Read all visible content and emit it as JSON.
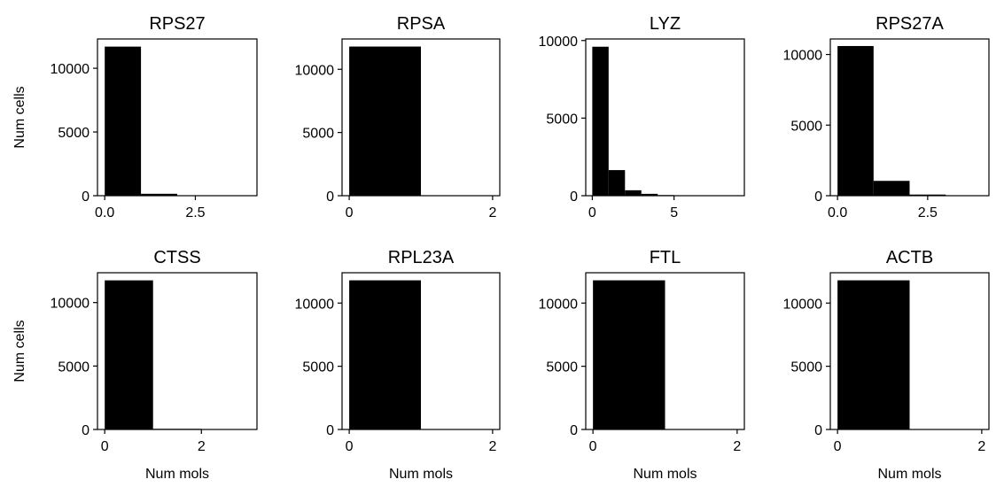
{
  "chart_data": [
    {
      "type": "bar",
      "title": "RPS27",
      "ylabel": "Num cells",
      "xlabel": "",
      "bins": [
        {
          "x0": 0,
          "x1": 1,
          "count": 11700
        },
        {
          "x0": 1,
          "x1": 2,
          "count": 150
        },
        {
          "x0": 2,
          "x1": 3,
          "count": 20
        },
        {
          "x0": 3,
          "x1": 4,
          "count": 5
        }
      ],
      "xlim": [
        -0.2,
        4.2
      ],
      "ylim": [
        0,
        12300
      ],
      "xticks": [
        0.0,
        2.5
      ],
      "xtick_labels": [
        "0.0",
        "2.5"
      ],
      "yticks": [
        0,
        5000,
        10000
      ],
      "ytick_labels": [
        "0",
        "5000",
        "10000"
      ]
    },
    {
      "type": "bar",
      "title": "RPSA",
      "ylabel": "",
      "xlabel": "",
      "bins": [
        {
          "x0": 0,
          "x1": 1,
          "count": 11800
        },
        {
          "x0": 1,
          "x1": 2,
          "count": 5
        }
      ],
      "xlim": [
        -0.1,
        2.1
      ],
      "ylim": [
        0,
        12400
      ],
      "xticks": [
        0,
        2
      ],
      "xtick_labels": [
        "0",
        "2"
      ],
      "yticks": [
        0,
        5000,
        10000
      ],
      "ytick_labels": [
        "0",
        "5000",
        "10000"
      ]
    },
    {
      "type": "bar",
      "title": "LYZ",
      "ylabel": "",
      "xlabel": "",
      "bins": [
        {
          "x0": 0,
          "x1": 1,
          "count": 9600
        },
        {
          "x0": 1,
          "x1": 2,
          "count": 1650
        },
        {
          "x0": 2,
          "x1": 3,
          "count": 350
        },
        {
          "x0": 3,
          "x1": 4,
          "count": 120
        },
        {
          "x0": 4,
          "x1": 5,
          "count": 40
        },
        {
          "x0": 5,
          "x1": 6,
          "count": 10
        },
        {
          "x0": 6,
          "x1": 7,
          "count": 5
        },
        {
          "x0": 7,
          "x1": 8,
          "count": 2
        }
      ],
      "xlim": [
        -0.4,
        9.3
      ],
      "ylim": [
        0,
        10100
      ],
      "xticks": [
        0,
        5
      ],
      "xtick_labels": [
        "0",
        "5"
      ],
      "yticks": [
        0,
        5000,
        10000
      ],
      "ytick_labels": [
        "0",
        "5000",
        "10000"
      ]
    },
    {
      "type": "bar",
      "title": "RPS27A",
      "ylabel": "",
      "xlabel": "",
      "bins": [
        {
          "x0": 0,
          "x1": 1,
          "count": 10600
        },
        {
          "x0": 1,
          "x1": 2,
          "count": 1050
        },
        {
          "x0": 2,
          "x1": 3,
          "count": 80
        },
        {
          "x0": 3,
          "x1": 4,
          "count": 5
        }
      ],
      "xlim": [
        -0.2,
        4.2
      ],
      "ylim": [
        0,
        11100
      ],
      "xticks": [
        0.0,
        2.5
      ],
      "xtick_labels": [
        "0.0",
        "2.5"
      ],
      "yticks": [
        0,
        5000,
        10000
      ],
      "ytick_labels": [
        "0",
        "5000",
        "10000"
      ]
    },
    {
      "type": "bar",
      "title": "CTSS",
      "ylabel": "Num cells",
      "xlabel": "Num mols",
      "bins": [
        {
          "x0": 0,
          "x1": 1,
          "count": 11750
        },
        {
          "x0": 1,
          "x1": 2,
          "count": 50
        },
        {
          "x0": 2,
          "x1": 3,
          "count": 5
        }
      ],
      "xlim": [
        -0.15,
        3.15
      ],
      "ylim": [
        0,
        12350
      ],
      "xticks": [
        0,
        2
      ],
      "xtick_labels": [
        "0",
        "2"
      ],
      "yticks": [
        0,
        5000,
        10000
      ],
      "ytick_labels": [
        "0",
        "5000",
        "10000"
      ]
    },
    {
      "type": "bar",
      "title": "RPL23A",
      "ylabel": "",
      "xlabel": "Num mols",
      "bins": [
        {
          "x0": 0,
          "x1": 1,
          "count": 11800
        },
        {
          "x0": 1,
          "x1": 2,
          "count": 5
        }
      ],
      "xlim": [
        -0.1,
        2.1
      ],
      "ylim": [
        0,
        12400
      ],
      "xticks": [
        0,
        2
      ],
      "xtick_labels": [
        "0",
        "2"
      ],
      "yticks": [
        0,
        5000,
        10000
      ],
      "ytick_labels": [
        "0",
        "5000",
        "10000"
      ]
    },
    {
      "type": "bar",
      "title": "FTL",
      "ylabel": "",
      "xlabel": "Num mols",
      "bins": [
        {
          "x0": 0,
          "x1": 1,
          "count": 11800
        },
        {
          "x0": 1,
          "x1": 2,
          "count": 5
        }
      ],
      "xlim": [
        -0.1,
        2.1
      ],
      "ylim": [
        0,
        12400
      ],
      "xticks": [
        0,
        2
      ],
      "xtick_labels": [
        "0",
        "2"
      ],
      "yticks": [
        0,
        5000,
        10000
      ],
      "ytick_labels": [
        "0",
        "5000",
        "10000"
      ]
    },
    {
      "type": "bar",
      "title": "ACTB",
      "ylabel": "",
      "xlabel": "Num mols",
      "bins": [
        {
          "x0": 0,
          "x1": 1,
          "count": 11800
        },
        {
          "x0": 1,
          "x1": 2,
          "count": 5
        }
      ],
      "xlim": [
        -0.1,
        2.1
      ],
      "ylim": [
        0,
        12400
      ],
      "xticks": [
        0,
        2
      ],
      "xtick_labels": [
        "0",
        "2"
      ],
      "yticks": [
        0,
        5000,
        10000
      ],
      "ytick_labels": [
        "0",
        "5000",
        "10000"
      ]
    }
  ],
  "colors": {
    "bar": "#000000",
    "axis": "#000000",
    "background": "#ffffff"
  }
}
